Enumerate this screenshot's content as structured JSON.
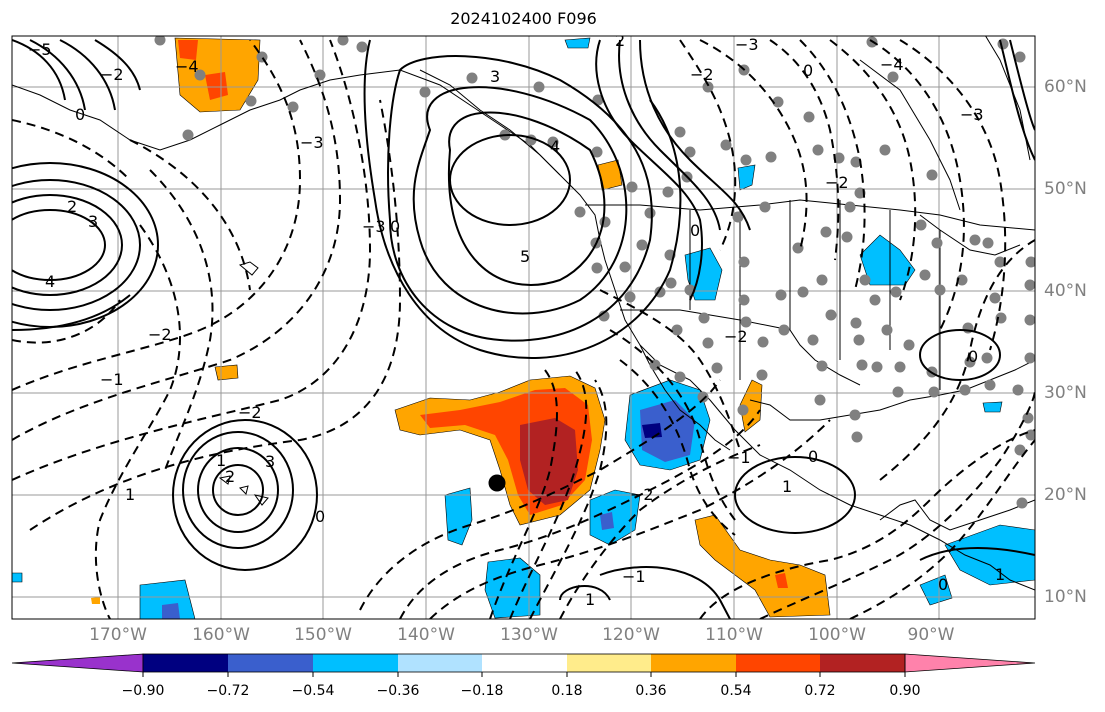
{
  "title": "2024102400 F096",
  "lon_labels": [
    "170°W",
    "160°W",
    "150°W",
    "140°W",
    "130°W",
    "120°W",
    "110°W",
    "100°W",
    "90°W"
  ],
  "lat_labels": [
    "60°N",
    "50°N",
    "40°N",
    "30°N",
    "20°N",
    "10°N"
  ],
  "colorbar": {
    "labels": [
      "−0.90",
      "−0.72",
      "−0.54",
      "−0.36",
      "−0.18",
      "0.18",
      "0.36",
      "0.54",
      "0.72",
      "0.90"
    ],
    "colors": [
      "#9932cc",
      "#000080",
      "#3a5fcd",
      "#00bfff",
      "#b0e2ff",
      "#ffffff",
      "#ffec8b",
      "#ffa500",
      "#ff4500",
      "#b22222",
      "#ff82ab"
    ]
  },
  "contour_labels": [
    "5",
    "4",
    "3",
    "2",
    "1",
    "0",
    "−1",
    "−2",
    "−3",
    "−4",
    "−5"
  ],
  "colors": {
    "grid": "#999999",
    "station": "#808080",
    "contour": "#000000",
    "coast": "#000000"
  }
}
